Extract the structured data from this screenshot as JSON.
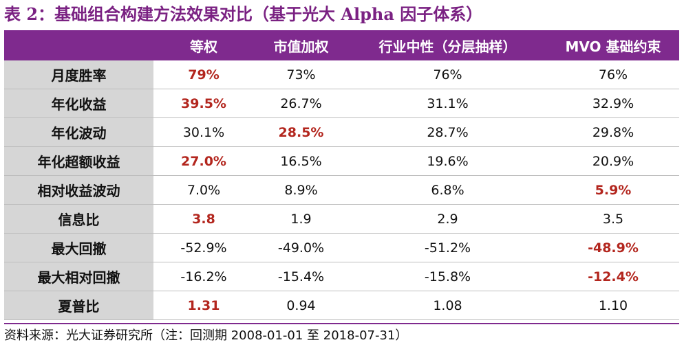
{
  "title": "表 2：基础组合构建方法效果对比（基于光大 Alpha 因子体系）",
  "header": [
    "",
    "等权",
    "市值加权",
    "行业中性（分层抽样）",
    "MVO 基础约束"
  ],
  "rows": [
    {
      "label": "月度胜率",
      "values": [
        "79%",
        "73%",
        "76%",
        "76%"
      ],
      "highlight": [
        true,
        false,
        false,
        false
      ]
    },
    {
      "label": "年化收益",
      "values": [
        "39.5%",
        "26.7%",
        "31.1%",
        "32.9%"
      ],
      "highlight": [
        true,
        false,
        false,
        false
      ]
    },
    {
      "label": "年化波动",
      "values": [
        "30.1%",
        "28.5%",
        "28.7%",
        "29.8%"
      ],
      "highlight": [
        false,
        true,
        false,
        false
      ]
    },
    {
      "label": "年化超额收益",
      "values": [
        "27.0%",
        "16.5%",
        "19.6%",
        "20.9%"
      ],
      "highlight": [
        true,
        false,
        false,
        false
      ]
    },
    {
      "label": "相对收益波动",
      "values": [
        "7.0%",
        "8.9%",
        "6.8%",
        "5.9%"
      ],
      "highlight": [
        false,
        false,
        false,
        true
      ]
    },
    {
      "label": "信息比",
      "values": [
        "3.8",
        "1.9",
        "2.9",
        "3.5"
      ],
      "highlight": [
        true,
        false,
        false,
        false
      ]
    },
    {
      "label": "最大回撤",
      "values": [
        "-52.9%",
        "-49.0%",
        "-51.2%",
        "-48.9%"
      ],
      "highlight": [
        false,
        false,
        false,
        true
      ]
    },
    {
      "label": "最大相对回撤",
      "values": [
        "-16.2%",
        "-15.4%",
        "-15.8%",
        "-12.4%"
      ],
      "highlight": [
        false,
        false,
        false,
        true
      ]
    },
    {
      "label": "夏普比",
      "values": [
        "1.31",
        "0.94",
        "1.08",
        "1.10"
      ],
      "highlight": [
        true,
        false,
        false,
        false
      ]
    }
  ],
  "source": "资料来源：光大证券研究所（注：回测期 2008-01-01 至 2018-07-31）",
  "colors": {
    "header_bg": "#7f2a8e",
    "title": "#7a2182",
    "highlight": "#b3261e",
    "label_bg": "#d6d6d6"
  }
}
